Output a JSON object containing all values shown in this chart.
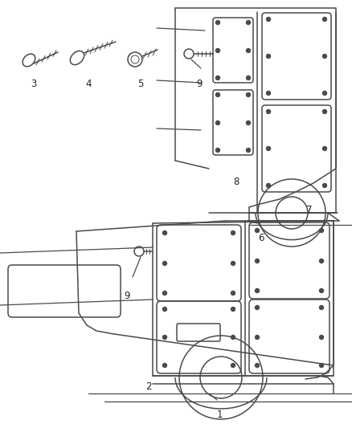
{
  "background_color": "#ffffff",
  "line_color": "#4a4a4a",
  "label_color": "#222222",
  "label_fontsize": 8.5,
  "figure_width": 4.38,
  "figure_height": 5.33,
  "dpi": 100
}
